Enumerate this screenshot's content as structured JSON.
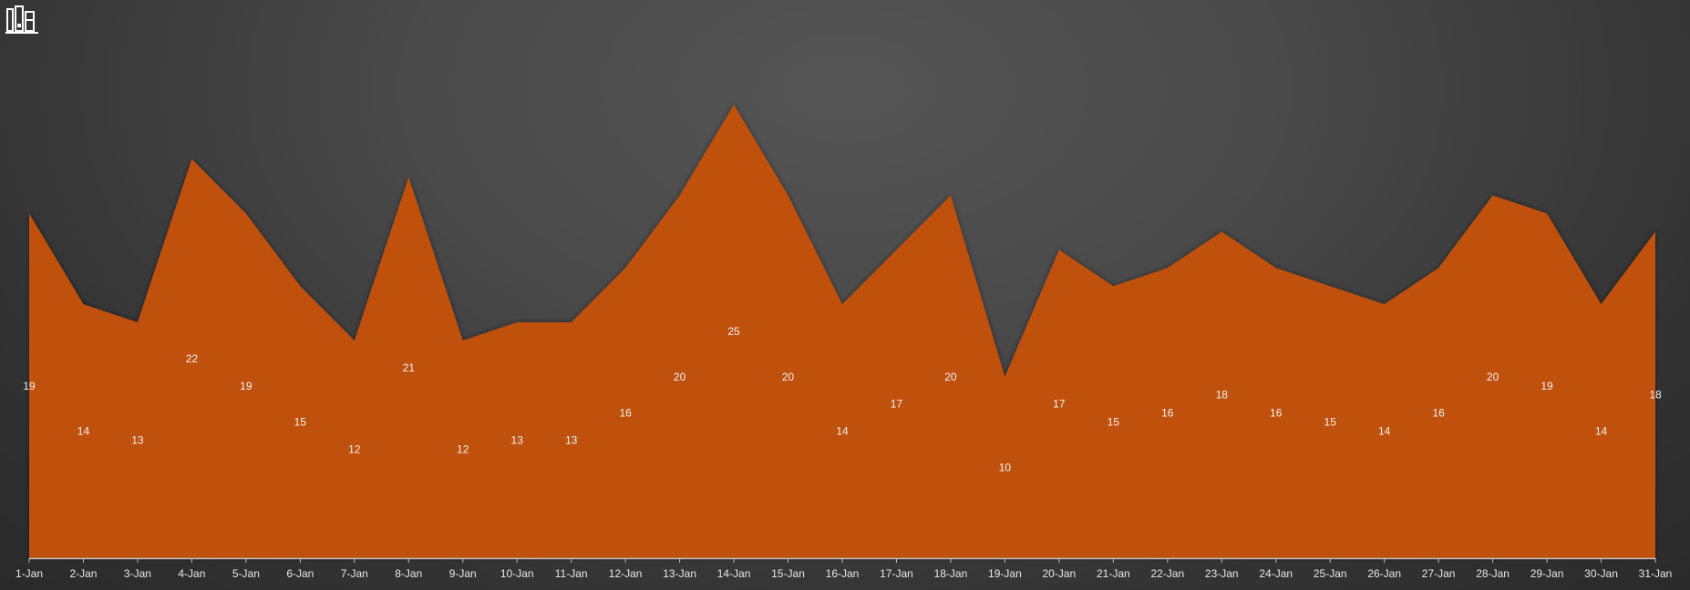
{
  "logo_icon": "books-icon",
  "colors": {
    "area": "#c0510f",
    "axis": "#bfbfbf",
    "label": "#f2f2f2"
  },
  "chart_data": {
    "type": "area",
    "title": "",
    "xlabel": "",
    "ylabel": "",
    "grid": false,
    "legend": "none",
    "ylim": [
      0,
      25
    ],
    "categories": [
      "1-Jan",
      "2-Jan",
      "3-Jan",
      "4-Jan",
      "5-Jan",
      "6-Jan",
      "7-Jan",
      "8-Jan",
      "9-Jan",
      "10-Jan",
      "11-Jan",
      "12-Jan",
      "13-Jan",
      "14-Jan",
      "15-Jan",
      "16-Jan",
      "17-Jan",
      "18-Jan",
      "19-Jan",
      "20-Jan",
      "21-Jan",
      "22-Jan",
      "23-Jan",
      "24-Jan",
      "25-Jan",
      "26-Jan",
      "27-Jan",
      "28-Jan",
      "29-Jan",
      "30-Jan",
      "31-Jan"
    ],
    "values": [
      19,
      14,
      13,
      22,
      19,
      15,
      12,
      21,
      12,
      13,
      13,
      16,
      20,
      25,
      20,
      14,
      17,
      20,
      10,
      17,
      15,
      16,
      18,
      16,
      15,
      14,
      16,
      20,
      19,
      14,
      18
    ]
  }
}
